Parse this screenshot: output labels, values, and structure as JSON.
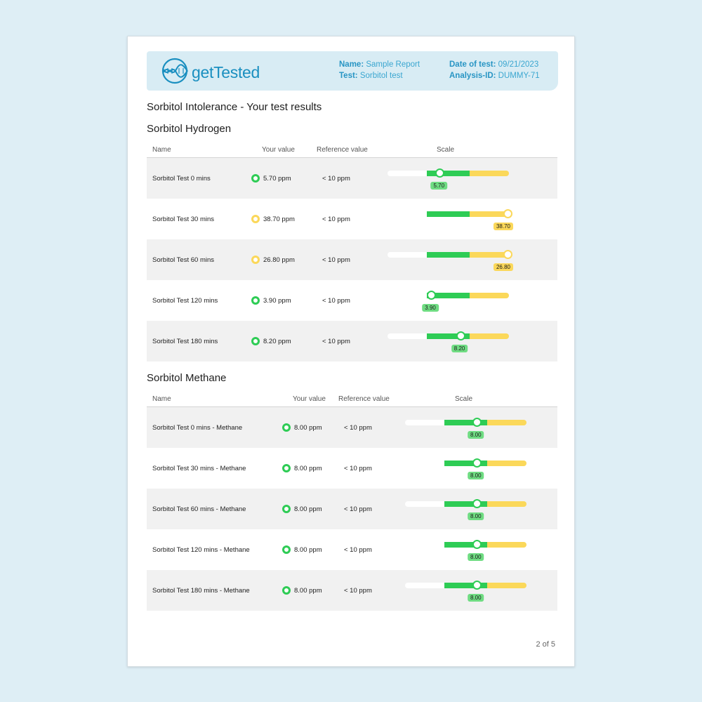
{
  "header": {
    "brand": "getTested",
    "name_label": "Name:",
    "name_value": "Sample Report",
    "test_label": "Test:",
    "test_value": "Sorbitol test",
    "date_label": "Date of test:",
    "date_value": "09/21/2023",
    "analysis_label": "Analysis-ID:",
    "analysis_value": "DUMMY-71"
  },
  "doc_title": "Sorbitol Intolerance - Your test results",
  "colors": {
    "green": "#2ecc55",
    "yellow": "#fbd85a",
    "brand": "#1a8fc0"
  },
  "columns": {
    "name": "Name",
    "value": "Your value",
    "reference": "Reference value",
    "scale": "Scale"
  },
  "sections": [
    {
      "title": "Sorbitol Hydrogen",
      "rows": [
        {
          "name": "Sorbitol Test 0 mins",
          "value": "5.70 ppm",
          "reference": "< 10 ppm",
          "marker": "5.70",
          "status": "green",
          "level": 0.3
        },
        {
          "name": "Sorbitol Test 30 mins",
          "value": "38.70 ppm",
          "reference": "< 10 ppm",
          "marker": "38.70",
          "status": "yellow",
          "level": 1.0
        },
        {
          "name": "Sorbitol Test 60 mins",
          "value": "26.80 ppm",
          "reference": "< 10 ppm",
          "marker": "26.80",
          "status": "yellow",
          "level": 1.0
        },
        {
          "name": "Sorbitol Test 120 mins",
          "value": "3.90 ppm",
          "reference": "< 10 ppm",
          "marker": "3.90",
          "status": "green",
          "level": 0.1
        },
        {
          "name": "Sorbitol Test 180 mins",
          "value": "8.20 ppm",
          "reference": "< 10 ppm",
          "marker": "8.20",
          "status": "green",
          "level": 0.78
        }
      ]
    },
    {
      "title": "Sorbitol Methane",
      "rows": [
        {
          "name": "Sorbitol Test 0 mins - Methane",
          "value": "8.00 ppm",
          "reference": "< 10 ppm",
          "marker": "8.00",
          "status": "green",
          "level": 0.75
        },
        {
          "name": "Sorbitol Test 30 mins - Methane",
          "value": "8.00 ppm",
          "reference": "< 10 ppm",
          "marker": "8.00",
          "status": "green",
          "level": 0.75
        },
        {
          "name": "Sorbitol Test 60 mins - Methane",
          "value": "8.00 ppm",
          "reference": "< 10 ppm",
          "marker": "8.00",
          "status": "green",
          "level": 0.75
        },
        {
          "name": "Sorbitol Test 120 mins - Methane",
          "value": "8.00 ppm",
          "reference": "< 10 ppm",
          "marker": "8.00",
          "status": "green",
          "level": 0.75
        },
        {
          "name": "Sorbitol Test 180 mins - Methane",
          "value": "8.00 ppm",
          "reference": "< 10 ppm",
          "marker": "8.00",
          "status": "green",
          "level": 0.75
        }
      ]
    }
  ],
  "page_number": "2 of 5"
}
